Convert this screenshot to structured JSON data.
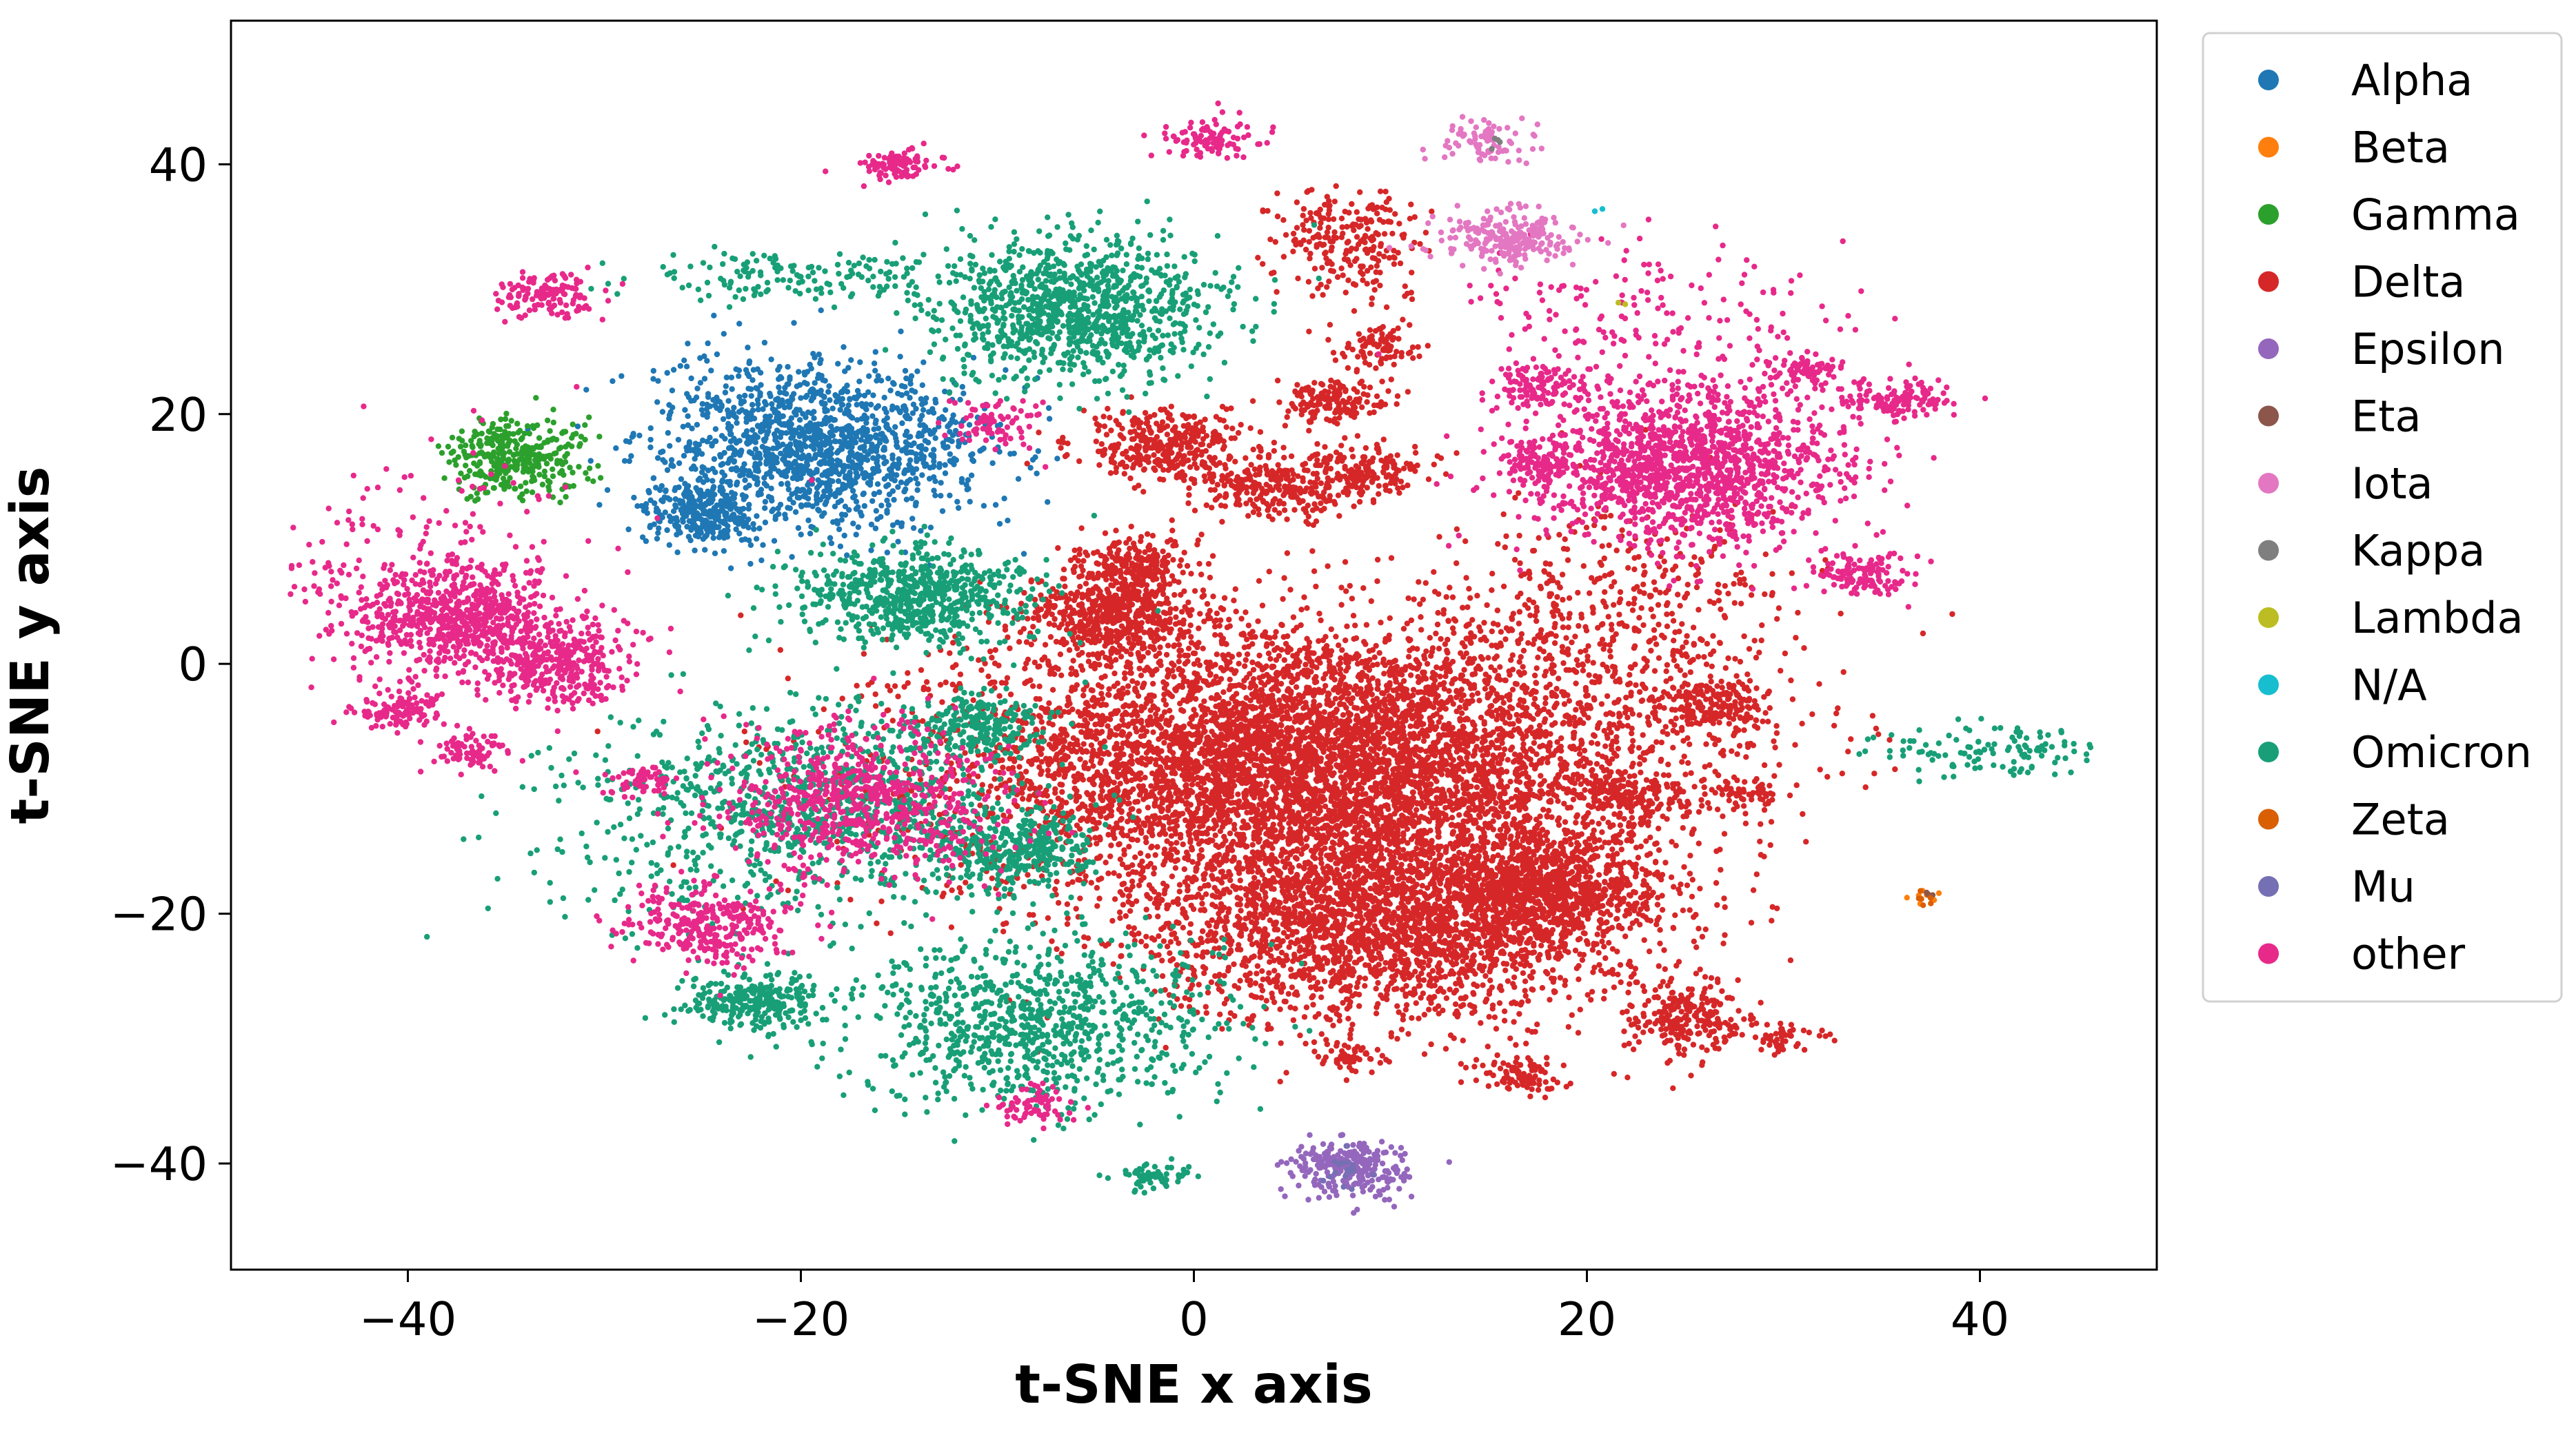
{
  "chart_data": {
    "type": "scatter",
    "title": "",
    "xlabel": "t-SNE x axis",
    "ylabel": "t-SNE y axis",
    "xlim": [
      -49,
      49
    ],
    "ylim": [
      -48.5,
      51.5
    ],
    "xticks": [
      -40,
      -20,
      0,
      20,
      40
    ],
    "yticks": [
      -40,
      -20,
      0,
      20,
      40
    ],
    "xtick_labels": [
      "−40",
      "−20",
      "0",
      "20",
      "40"
    ],
    "ytick_labels": [
      "−40",
      "−20",
      "0",
      "20",
      "40"
    ],
    "grid": false,
    "legend_position": "outside-right",
    "series": [
      {
        "name": "Alpha",
        "color": "#1f77b4",
        "clusters": [
          {
            "center": [
              -19,
              17.5
            ],
            "spread": [
              4.2,
              3.2
            ],
            "count": 1400
          },
          {
            "center": [
              -25,
              12
            ],
            "spread": [
              1.4,
              1.2
            ],
            "count": 280
          }
        ]
      },
      {
        "name": "Beta",
        "color": "#ff7f0e",
        "clusters": [
          {
            "center": [
              37.2,
              -18.7
            ],
            "spread": [
              0.4,
              0.4
            ],
            "count": 8
          }
        ]
      },
      {
        "name": "Gamma",
        "color": "#2ca02c",
        "clusters": [
          {
            "center": [
              -34.5,
              16.5
            ],
            "spread": [
              1.8,
              1.6
            ],
            "count": 350
          }
        ]
      },
      {
        "name": "Delta",
        "color": "#d62728",
        "clusters": [
          {
            "center": [
              6,
              -8
            ],
            "spread": [
              9.0,
              5.5
            ],
            "count": 6500
          },
          {
            "center": [
              10,
              -21
            ],
            "spread": [
              6.0,
              3.8
            ],
            "count": 2400
          },
          {
            "center": [
              18,
              -18
            ],
            "spread": [
              3.0,
              2.2
            ],
            "count": 900
          },
          {
            "center": [
              -4,
              4
            ],
            "spread": [
              2.2,
              1.8
            ],
            "count": 550
          },
          {
            "center": [
              -3,
              8
            ],
            "spread": [
              1.4,
              1.0
            ],
            "count": 200
          },
          {
            "center": [
              -1.5,
              17.5
            ],
            "spread": [
              2.2,
              1.4
            ],
            "count": 350
          },
          {
            "center": [
              4,
              14
            ],
            "spread": [
              2.0,
              1.2
            ],
            "count": 260
          },
          {
            "center": [
              7,
              21
            ],
            "spread": [
              1.4,
              1.0
            ],
            "count": 160
          },
          {
            "center": [
              8.5,
              15.5
            ],
            "spread": [
              1.8,
              1.0
            ],
            "count": 180
          },
          {
            "center": [
              8,
              34
            ],
            "spread": [
              1.8,
              2.2
            ],
            "count": 240
          },
          {
            "center": [
              9.5,
              25.5
            ],
            "spread": [
              1.0,
              0.8
            ],
            "count": 90
          },
          {
            "center": [
              26.5,
              -3.5
            ],
            "spread": [
              1.5,
              1.2
            ],
            "count": 200
          },
          {
            "center": [
              22,
              -10.5
            ],
            "spread": [
              1.4,
              1.0
            ],
            "count": 150
          },
          {
            "center": [
              25,
              -28.5
            ],
            "spread": [
              1.6,
              1.6
            ],
            "count": 240
          },
          {
            "center": [
              16.5,
              -33
            ],
            "spread": [
              1.2,
              0.8
            ],
            "count": 90
          },
          {
            "center": [
              8,
              -31.5
            ],
            "spread": [
              0.8,
              0.6
            ],
            "count": 50
          },
          {
            "center": [
              28.5,
              -10.5
            ],
            "spread": [
              1.0,
              0.6
            ],
            "count": 60
          },
          {
            "center": [
              22,
              4
            ],
            "spread": [
              4.5,
              5.0
            ],
            "count": 450
          },
          {
            "center": [
              30,
              -30
            ],
            "spread": [
              1.2,
              0.6
            ],
            "count": 50
          }
        ]
      },
      {
        "name": "Epsilon",
        "color": "#9467bd",
        "clusters": [
          {
            "center": [
              8,
              -40.5
            ],
            "spread": [
              1.6,
              1.2
            ],
            "count": 260
          }
        ]
      },
      {
        "name": "Eta",
        "color": "#8c564b",
        "clusters": [
          {
            "center": [
              37.6,
              -18.4
            ],
            "spread": [
              0.2,
              0.2
            ],
            "count": 3
          }
        ]
      },
      {
        "name": "Iota",
        "color": "#e377c2",
        "clusters": [
          {
            "center": [
              16,
              34
            ],
            "spread": [
              1.8,
              1.1
            ],
            "count": 230
          },
          {
            "center": [
              14.8,
              42
            ],
            "spread": [
              1.2,
              1.0
            ],
            "count": 80
          }
        ]
      },
      {
        "name": "Kappa",
        "color": "#7f7f7f",
        "clusters": [
          {
            "center": [
              15.2,
              41.8
            ],
            "spread": [
              0.3,
              0.3
            ],
            "count": 4
          }
        ]
      },
      {
        "name": "Lambda",
        "color": "#bcbd22",
        "clusters": [
          {
            "center": [
              21.8,
              28.8
            ],
            "spread": [
              0.1,
              0.1
            ],
            "count": 2
          }
        ]
      },
      {
        "name": "N/A",
        "color": "#17becf",
        "clusters": [
          {
            "center": [
              20.5,
              36.5
            ],
            "spread": [
              0.2,
              0.2
            ],
            "count": 2
          }
        ]
      },
      {
        "name": "Omicron",
        "color": "#189f77",
        "clusters": [
          {
            "center": [
              -6,
              28.5
            ],
            "spread": [
              3.6,
              2.8
            ],
            "count": 1100
          },
          {
            "center": [
              -14.5,
              5.5
            ],
            "spread": [
              3.0,
              2.0
            ],
            "count": 700
          },
          {
            "center": [
              -18,
              -11.5
            ],
            "spread": [
              5.0,
              4.0
            ],
            "count": 900
          },
          {
            "center": [
              -11,
              -5
            ],
            "spread": [
              1.5,
              1.2
            ],
            "count": 220
          },
          {
            "center": [
              -9,
              -15
            ],
            "spread": [
              1.8,
              1.5
            ],
            "count": 300
          },
          {
            "center": [
              -8,
              -29
            ],
            "spread": [
              4.5,
              3.5
            ],
            "count": 900
          },
          {
            "center": [
              -22.5,
              -27
            ],
            "spread": [
              1.8,
              1.2
            ],
            "count": 280
          },
          {
            "center": [
              -2,
              -41
            ],
            "spread": [
              1.0,
              0.5
            ],
            "count": 60
          },
          {
            "center": [
              -20,
              31
            ],
            "spread": [
              4.0,
              1.0
            ],
            "count": 150
          },
          {
            "center": [
              40.5,
              -7
            ],
            "spread": [
              2.6,
              1.0
            ],
            "count": 120
          },
          {
            "center": [
              -27,
              -13
            ],
            "spread": [
              4.0,
              5.0
            ],
            "count": 150
          }
        ]
      },
      {
        "name": "Zeta",
        "color": "#d95f02",
        "clusters": [
          {
            "center": [
              37.4,
              -18.9
            ],
            "spread": [
              0.3,
              0.3
            ],
            "count": 6
          }
        ]
      },
      {
        "name": "Mu",
        "color": "#7570b3",
        "clusters": [
          {
            "center": [
              8,
              -40.5
            ],
            "spread": [
              0.8,
              0.6
            ],
            "count": 20
          }
        ]
      },
      {
        "name": "other",
        "color": "#e7298a",
        "clusters": [
          {
            "center": [
              25,
              16
            ],
            "spread": [
              4.0,
              3.2
            ],
            "count": 1500
          },
          {
            "center": [
              -37.5,
              4
            ],
            "spread": [
              2.5,
              2.0
            ],
            "count": 600
          },
          {
            "center": [
              -32.5,
              0
            ],
            "spread": [
              2.0,
              1.8
            ],
            "count": 380
          },
          {
            "center": [
              -40.5,
              -3.5
            ],
            "spread": [
              1.2,
              1.0
            ],
            "count": 120
          },
          {
            "center": [
              -37,
              -7
            ],
            "spread": [
              1.0,
              0.8
            ],
            "count": 80
          },
          {
            "center": [
              -33,
              29.5
            ],
            "spread": [
              1.2,
              0.8
            ],
            "count": 140
          },
          {
            "center": [
              -24.5,
              -21
            ],
            "spread": [
              2.0,
              1.6
            ],
            "count": 300
          },
          {
            "center": [
              -17,
              -11
            ],
            "spread": [
              3.5,
              3.2
            ],
            "count": 700
          },
          {
            "center": [
              -15,
              40
            ],
            "spread": [
              1.0,
              0.6
            ],
            "count": 100
          },
          {
            "center": [
              -8,
              -35.5
            ],
            "spread": [
              1.0,
              0.7
            ],
            "count": 70
          },
          {
            "center": [
              1,
              42
            ],
            "spread": [
              1.2,
              0.8
            ],
            "count": 100
          },
          {
            "center": [
              35.5,
              21
            ],
            "spread": [
              1.4,
              0.8
            ],
            "count": 130
          },
          {
            "center": [
              34,
              7
            ],
            "spread": [
              1.2,
              0.9
            ],
            "count": 120
          },
          {
            "center": [
              31,
              23.5
            ],
            "spread": [
              1.2,
              0.6
            ],
            "count": 80
          },
          {
            "center": [
              17.5,
              16
            ],
            "spread": [
              1.0,
              0.8
            ],
            "count": 90
          },
          {
            "center": [
              17.5,
              22
            ],
            "spread": [
              1.2,
              0.8
            ],
            "count": 110
          },
          {
            "center": [
              -10,
              19
            ],
            "spread": [
              1.2,
              1.0
            ],
            "count": 80
          },
          {
            "center": [
              -28,
              -9.5
            ],
            "spread": [
              0.8,
              0.6
            ],
            "count": 60
          },
          {
            "center": [
              -39,
              7
            ],
            "spread": [
              4.5,
              5.0
            ],
            "count": 250
          },
          {
            "center": [
              24,
              28
            ],
            "spread": [
              5.0,
              3.0
            ],
            "count": 160
          }
        ]
      }
    ]
  }
}
